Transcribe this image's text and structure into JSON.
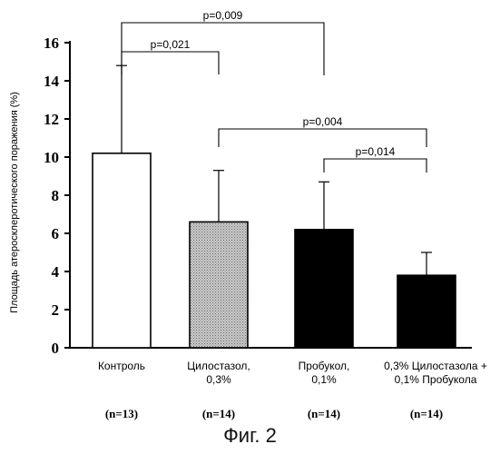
{
  "chart_data": {
    "type": "bar",
    "ylabel": "Площадь атеросклеротического поражения (%)",
    "ylim": [
      0,
      16
    ],
    "yticks": [
      0,
      2,
      4,
      6,
      8,
      10,
      12,
      14,
      16
    ],
    "grid": false,
    "bars": [
      {
        "label": [
          "Контроль"
        ],
        "n": "(n=13)",
        "value": 10.2,
        "error": 4.6,
        "fill": "#ffffff",
        "pattern": false
      },
      {
        "label": [
          "Цилостазол,",
          "0,3%"
        ],
        "n": "(n=14)",
        "value": 6.6,
        "error": 2.7,
        "fill": "#bdbdbd",
        "pattern": true
      },
      {
        "label": [
          "Пробукол,",
          "0,1%"
        ],
        "n": "(n=14)",
        "value": 6.2,
        "error": 2.5,
        "fill": "#000000",
        "pattern": false
      },
      {
        "label": [
          "0,3% Цилостазола +",
          "0,1% Пробукола"
        ],
        "n": "(n=14)",
        "value": 3.8,
        "error": 1.2,
        "fill": "#000000",
        "pattern": false
      }
    ],
    "annotations": [
      {
        "text": "p=0,009",
        "from": 0,
        "to": 2
      },
      {
        "text": "p=0,021",
        "from": 0,
        "to": 1
      },
      {
        "text": "p=0,004",
        "from": 1,
        "to": 3
      },
      {
        "text": "p=0,014",
        "from": 2,
        "to": 3
      }
    ]
  },
  "caption": "Фиг. 2"
}
